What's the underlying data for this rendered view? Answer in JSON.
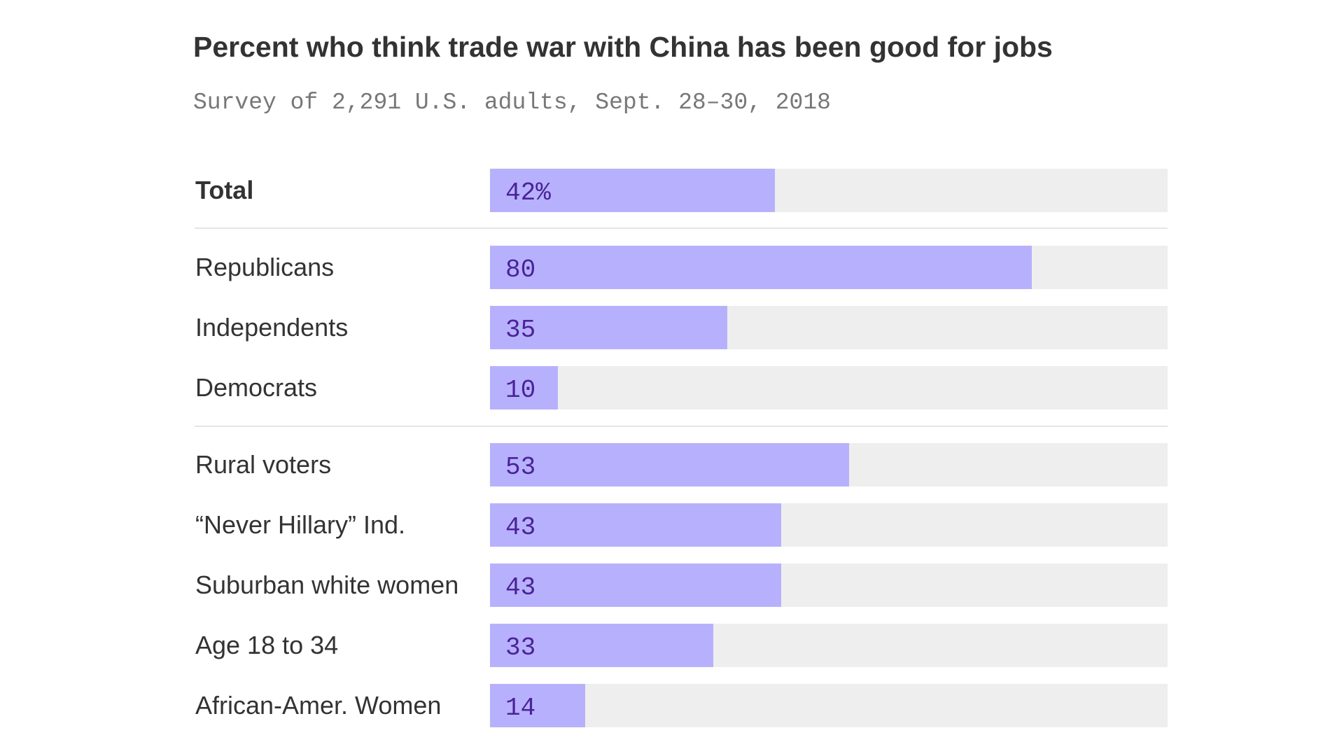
{
  "title": "Percent who think trade war with China has been good for jobs",
  "subtitle": "Survey of 2,291 U.S. adults, Sept. 28–30, 2018",
  "chart_data": {
    "type": "bar",
    "orientation": "horizontal",
    "title": "Percent who think trade war with China has been good for jobs",
    "subtitle": "Survey of 2,291 U.S. adults, Sept. 28–30, 2018",
    "xlim": [
      0,
      100
    ],
    "grid": false,
    "categories": [
      "Total",
      "Republicans",
      "Independents",
      "Democrats",
      "Rural voters",
      "“Never Hillary” Ind.",
      "Suburban white women",
      "Age 18 to 34",
      "African-Amer. Women"
    ],
    "values": [
      42,
      80,
      35,
      10,
      53,
      43,
      43,
      33,
      14
    ],
    "value_labels": [
      "42%",
      "80",
      "35",
      "10",
      "53",
      "43",
      "43",
      "33",
      "14"
    ],
    "groups": [
      [
        "Total"
      ],
      [
        "Republicans",
        "Independents",
        "Democrats"
      ],
      [
        "Rural voters",
        "“Never Hillary” Ind.",
        "Suburban white women",
        "Age 18 to 34",
        "African-Amer. Women"
      ]
    ],
    "colors": {
      "bar": "#b7b1fd",
      "track": "#eeeeee",
      "value_text": "#4b2397",
      "label_text": "#333333",
      "divider": "#e5e5e5"
    }
  }
}
